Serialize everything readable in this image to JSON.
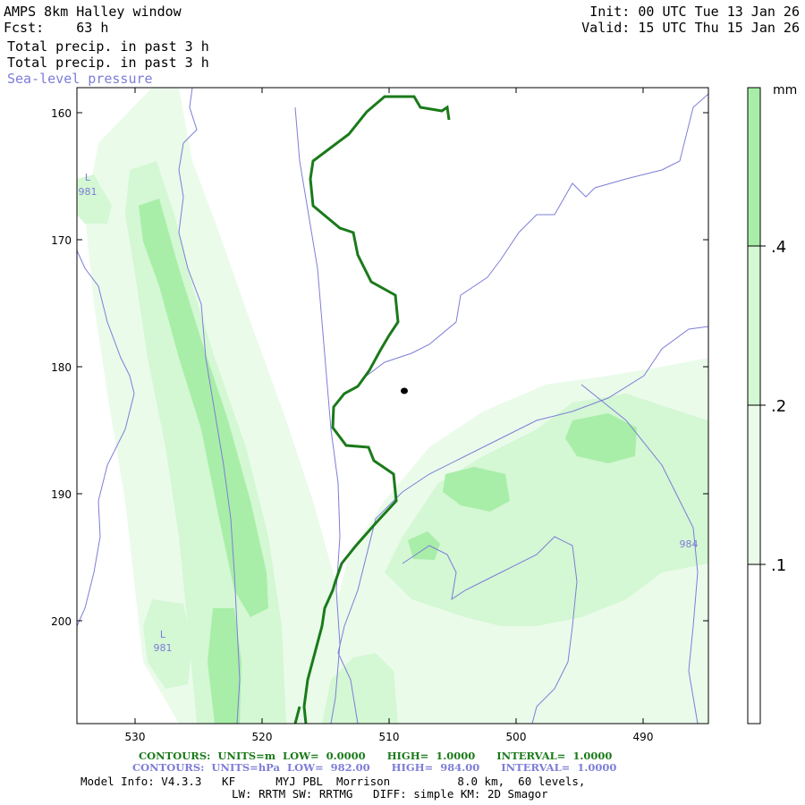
{
  "header": {
    "title": "AMPS 8km Halley window",
    "fcst": "Fcst:    63 h",
    "init": "Init: 00 UTC Tue 13 Jan 26",
    "valid": "Valid: 15 UTC Thu 15 Jan 26",
    "field1": "Total precip. in past 3 h",
    "field2": "Total precip. in past 3 h",
    "field3": "Sea-level pressure"
  },
  "colorbar": {
    "unit": "mm",
    "labels": [
      ".4",
      ".2",
      ".1"
    ],
    "colors": [
      "#a8eea8",
      "#d4f7d4",
      "#eafbea",
      "#ffffff"
    ]
  },
  "axes": {
    "y_ticks": [
      "160",
      "170",
      "180",
      "190",
      "200"
    ],
    "x_ticks": [
      "530",
      "520",
      "510",
      "500",
      "490"
    ]
  },
  "map_labels": {
    "low1_letter": "L",
    "low1_value": "981",
    "low2_letter": "L",
    "low2_value": "981",
    "isobar_label": "984"
  },
  "footer": {
    "contours_green": "CONTOURS:  UNITS=m  LOW=  0.0000      HIGH=  1.0000      INTERVAL=  1.0000",
    "contours_blue": "CONTOURS:  UNITS=hPa  LOW=  982.00      HIGH=  984.00      INTERVAL=  1.0000",
    "model_info": "Model Info: V4.3.3   KF      MYJ PBL  Morrison          8.0 km,  60 levels,",
    "model_info2": "LW: RRTM SW: RRTMG   DIFF: simple KM: 2D Smagor"
  },
  "style": {
    "green_contour": "#1a7a1a",
    "isobar": "#7d7dd8"
  }
}
